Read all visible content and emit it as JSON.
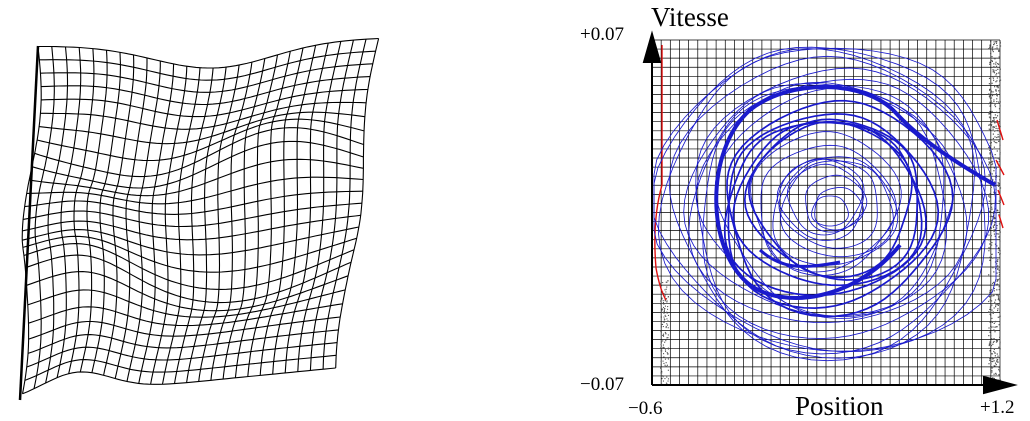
{
  "figure": {
    "left_panel": {
      "kind": "3d-wireframe-surface"
    },
    "right_panel": {
      "y_axis": {
        "label": "Vitesse",
        "top_tick": "+0.07",
        "bottom_tick": "−0.07"
      },
      "x_axis": {
        "label": "Position",
        "left_tick": "−0.6",
        "right_tick": "+1.2"
      },
      "colors": {
        "trajectory": "#1a1acc",
        "boundary": "#e01010",
        "grid": "#000000",
        "noise": "#555555"
      }
    }
  }
}
